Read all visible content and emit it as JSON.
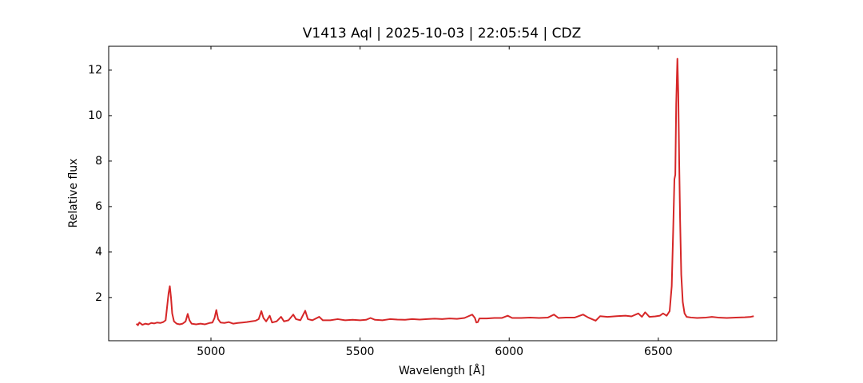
{
  "chart_data": {
    "type": "line",
    "title": "V1413 Aql | 2025-10-03 | 22:05:54 | CDZ",
    "x_label": "Wavelength [Å]",
    "y_label": "Relative flux",
    "xlim": [
      4657,
      6897
    ],
    "ylim": [
      0.1,
      13.05
    ],
    "xticks": [
      5000,
      5500,
      6000,
      6500
    ],
    "yticks": [
      2,
      4,
      6,
      8,
      10,
      12
    ],
    "grid": false,
    "x": [
      4750,
      4755,
      4760,
      4770,
      4780,
      4790,
      4800,
      4810,
      4820,
      4830,
      4840,
      4848,
      4853,
      4858,
      4862,
      4866,
      4870,
      4876,
      4885,
      4895,
      4905,
      4915,
      4922,
      4928,
      4935,
      4950,
      4965,
      4980,
      4995,
      5005,
      5012,
      5018,
      5024,
      5032,
      5045,
      5060,
      5075,
      5090,
      5105,
      5120,
      5135,
      5150,
      5160,
      5169,
      5176,
      5185,
      5197,
      5205,
      5220,
      5235,
      5245,
      5260,
      5276,
      5285,
      5300,
      5316,
      5325,
      5340,
      5363,
      5375,
      5400,
      5425,
      5450,
      5475,
      5500,
      5520,
      5535,
      5550,
      5575,
      5600,
      5625,
      5650,
      5675,
      5700,
      5725,
      5750,
      5775,
      5800,
      5825,
      5850,
      5876,
      5885,
      5890,
      5895,
      5900,
      5925,
      5950,
      5975,
      5995,
      6010,
      6040,
      6070,
      6100,
      6130,
      6150,
      6165,
      6190,
      6220,
      6248,
      6265,
      6290,
      6305,
      6330,
      6360,
      6390,
      6410,
      6433,
      6445,
      6456,
      6470,
      6490,
      6505,
      6516,
      6528,
      6538,
      6545,
      6550,
      6554,
      6557,
      6560,
      6564,
      6567,
      6570,
      6573,
      6577,
      6582,
      6588,
      6595,
      6610,
      6630,
      6660,
      6680,
      6700,
      6730,
      6760,
      6790,
      6810,
      6820
    ],
    "series": [
      {
        "name": "Relative flux",
        "color": "#d62728",
        "values": [
          0.85,
          0.78,
          0.9,
          0.8,
          0.85,
          0.82,
          0.88,
          0.86,
          0.9,
          0.88,
          0.92,
          1.0,
          1.6,
          2.2,
          2.5,
          2.0,
          1.3,
          0.95,
          0.85,
          0.82,
          0.85,
          0.95,
          1.28,
          1.0,
          0.85,
          0.82,
          0.85,
          0.82,
          0.88,
          0.9,
          1.1,
          1.45,
          1.05,
          0.9,
          0.88,
          0.92,
          0.85,
          0.88,
          0.9,
          0.92,
          0.95,
          0.98,
          1.05,
          1.4,
          1.1,
          0.95,
          1.2,
          0.9,
          0.95,
          1.15,
          0.95,
          1.0,
          1.25,
          1.05,
          1.0,
          1.42,
          1.05,
          1.0,
          1.15,
          1.0,
          1.0,
          1.05,
          1.0,
          1.02,
          1.0,
          1.02,
          1.1,
          1.02,
          1.0,
          1.05,
          1.03,
          1.02,
          1.05,
          1.03,
          1.05,
          1.07,
          1.05,
          1.08,
          1.06,
          1.1,
          1.25,
          1.1,
          0.9,
          0.92,
          1.08,
          1.08,
          1.1,
          1.1,
          1.2,
          1.1,
          1.1,
          1.12,
          1.1,
          1.12,
          1.25,
          1.1,
          1.12,
          1.12,
          1.25,
          1.12,
          0.98,
          1.18,
          1.15,
          1.18,
          1.2,
          1.17,
          1.3,
          1.15,
          1.35,
          1.15,
          1.17,
          1.2,
          1.3,
          1.2,
          1.4,
          2.5,
          5.0,
          7.2,
          7.4,
          10.5,
          12.5,
          11.0,
          8.0,
          5.5,
          3.0,
          1.8,
          1.3,
          1.15,
          1.12,
          1.1,
          1.12,
          1.15,
          1.12,
          1.1,
          1.12,
          1.13,
          1.15,
          1.18
        ]
      }
    ]
  }
}
